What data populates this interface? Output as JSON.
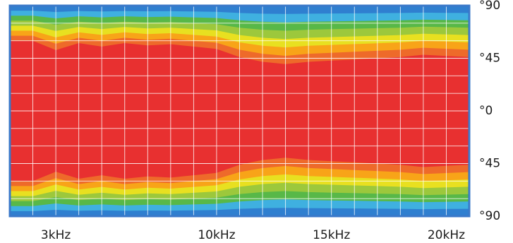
{
  "chart_data": {
    "type": "heatmap",
    "title": "",
    "xlabel": "",
    "ylabel": "",
    "x_tick_labels": [
      {
        "value": 3,
        "label": "3kHz"
      },
      {
        "value": 10,
        "label": "10kHz"
      },
      {
        "value": 15,
        "label": "15kHz"
      },
      {
        "value": 20,
        "label": "20kHz"
      }
    ],
    "y_tick_labels": [
      {
        "value": 90,
        "label": "°90"
      },
      {
        "value": 45,
        "label": "°45"
      },
      {
        "value": 0,
        "label": "°0"
      },
      {
        "value": -45,
        "label": "°45"
      },
      {
        "value": -90,
        "label": "°90"
      }
    ],
    "xlim": [
      1,
      21
    ],
    "ylim": [
      -90,
      90
    ],
    "grid": true,
    "frame_color": "#3a78c9",
    "grid_color": "#ffffff",
    "colorscale": [
      "#2f7fd0",
      "#3fb0e0",
      "#58b848",
      "#9cc83c",
      "#e8e020",
      "#f8a418",
      "#ee6a2a",
      "#e83030"
    ],
    "coverage_edges": [
      {
        "freq_khz": 1,
        "edge_deg": 60
      },
      {
        "freq_khz": 2,
        "edge_deg": 60
      },
      {
        "freq_khz": 3,
        "edge_deg": 52
      },
      {
        "freq_khz": 4,
        "edge_deg": 58
      },
      {
        "freq_khz": 5,
        "edge_deg": 55
      },
      {
        "freq_khz": 6,
        "edge_deg": 58
      },
      {
        "freq_khz": 7,
        "edge_deg": 56
      },
      {
        "freq_khz": 8,
        "edge_deg": 57
      },
      {
        "freq_khz": 9,
        "edge_deg": 55
      },
      {
        "freq_khz": 10,
        "edge_deg": 53
      },
      {
        "freq_khz": 11,
        "edge_deg": 46
      },
      {
        "freq_khz": 12,
        "edge_deg": 42
      },
      {
        "freq_khz": 13,
        "edge_deg": 40
      },
      {
        "freq_khz": 14,
        "edge_deg": 42
      },
      {
        "freq_khz": 15,
        "edge_deg": 43
      },
      {
        "freq_khz": 16,
        "edge_deg": 44
      },
      {
        "freq_khz": 17,
        "edge_deg": 45
      },
      {
        "freq_khz": 18,
        "edge_deg": 46
      },
      {
        "freq_khz": 19,
        "edge_deg": 48
      },
      {
        "freq_khz": 20,
        "edge_deg": 47
      },
      {
        "freq_khz": 21,
        "edge_deg": 46
      }
    ]
  }
}
